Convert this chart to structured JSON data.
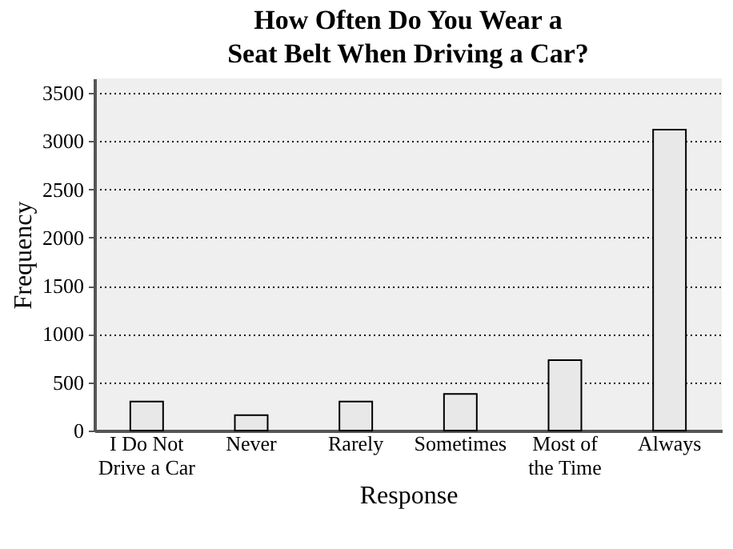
{
  "chart_data": {
    "type": "bar",
    "title": "How Often Do You Wear a\nSeat Belt When Driving a Car?",
    "xlabel": "Response",
    "ylabel": "Frequency",
    "categories": [
      "I Do Not\nDrive a Car",
      "Never",
      "Rarely",
      "Sometimes",
      "Most of\nthe Time",
      "Always"
    ],
    "values": [
      300,
      160,
      300,
      380,
      730,
      3120
    ],
    "color": "#e8e8e8",
    "ylim": [
      0,
      3650
    ],
    "yticks": [
      0,
      500,
      1000,
      1500,
      2000,
      2500,
      3000,
      3500
    ],
    "grid": "y"
  }
}
